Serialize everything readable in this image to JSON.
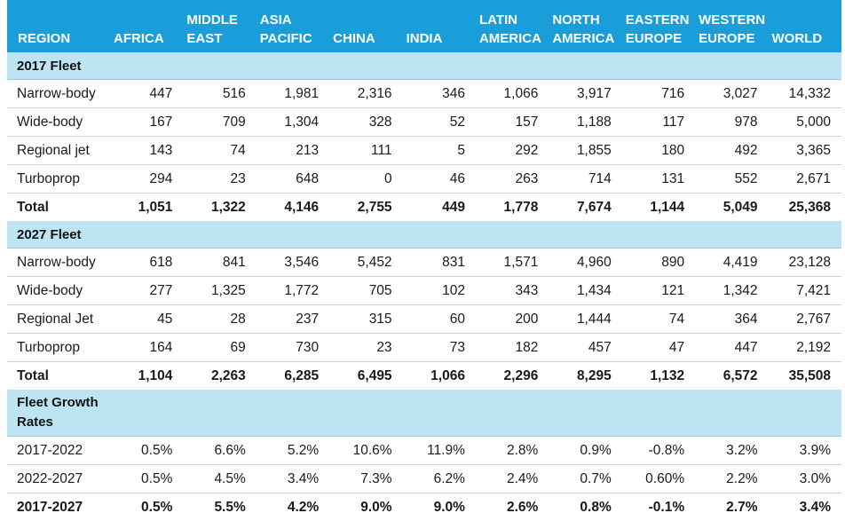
{
  "headers": [
    [
      "REGION"
    ],
    [
      "AFRICA"
    ],
    [
      "MIDDLE",
      "EAST"
    ],
    [
      "ASIA",
      "PACIFIC"
    ],
    [
      "CHINA"
    ],
    [
      "INDIA"
    ],
    [
      "LATIN",
      "AMERICA"
    ],
    [
      "NORTH",
      "AMERICA"
    ],
    [
      "EASTERN",
      "EUROPE"
    ],
    [
      "WESTERN",
      "EUROPE"
    ],
    [
      "WORLD"
    ]
  ],
  "sections": [
    {
      "title": "2017 Fleet",
      "rows": [
        {
          "cells": [
            "Narrow-body",
            "447",
            "516",
            "1,981",
            "2,316",
            "346",
            "1,066",
            "3,917",
            "716",
            "3,027",
            "14,332"
          ]
        },
        {
          "cells": [
            "Wide-body",
            "167",
            "709",
            "1,304",
            "328",
            "52",
            "157",
            "1,188",
            "117",
            "978",
            "5,000"
          ]
        },
        {
          "cells": [
            "Regional jet",
            "143",
            "74",
            "213",
            "111",
            "5",
            "292",
            "1,855",
            "180",
            "492",
            "3,365"
          ]
        },
        {
          "cells": [
            "Turboprop",
            "294",
            "23",
            "648",
            "0",
            "46",
            "263",
            "714",
            "131",
            "552",
            "2,671"
          ]
        },
        {
          "total": true,
          "cells": [
            "Total",
            "1,051",
            "1,322",
            "4,146",
            "2,755",
            "449",
            "1,778",
            "7,674",
            "1,144",
            "5,049",
            "25,368"
          ]
        }
      ]
    },
    {
      "title": "2027 Fleet",
      "rows": [
        {
          "cells": [
            "Narrow-body",
            "618",
            "841",
            "3,546",
            "5,452",
            "831",
            "1,571",
            "4,960",
            "890",
            "4,419",
            "23,128"
          ]
        },
        {
          "cells": [
            "Wide-body",
            "277",
            "1,325",
            "1,772",
            "705",
            "102",
            "343",
            "1,434",
            "121",
            "1,342",
            "7,421"
          ]
        },
        {
          "cells": [
            "Regional Jet",
            "45",
            "28",
            "237",
            "315",
            "60",
            "200",
            "1,444",
            "74",
            "364",
            "2,767"
          ]
        },
        {
          "cells": [
            "Turboprop",
            "164",
            "69",
            "730",
            "23",
            "73",
            "182",
            "457",
            "47",
            "447",
            "2,192"
          ]
        },
        {
          "total": true,
          "cells": [
            "Total",
            "1,104",
            "2,263",
            "6,285",
            "6,495",
            "1,066",
            "2,296",
            "8,295",
            "1,132",
            "6,572",
            "35,508"
          ]
        }
      ]
    },
    {
      "title": "Fleet Growth Rates",
      "title_lines": [
        "Fleet Growth",
        "Rates"
      ],
      "rows": [
        {
          "cells": [
            "2017-2022",
            "0.5%",
            "6.6%",
            "5.2%",
            "10.6%",
            "11.9%",
            "2.8%",
            "0.9%",
            "-0.8%",
            "3.2%",
            "3.9%"
          ]
        },
        {
          "cells": [
            "2022-2027",
            "0.5%",
            "4.5%",
            "3.4%",
            "7.3%",
            "6.2%",
            "2.4%",
            "0.7%",
            "0.60%",
            "2.2%",
            "3.0%"
          ]
        },
        {
          "total": true,
          "cells": [
            "2017-2027",
            "0.5%",
            "5.5%",
            "4.2%",
            "9.0%",
            "9.0%",
            "2.6%",
            "0.8%",
            "-0.1%",
            "2.7%",
            "3.4%"
          ]
        }
      ]
    }
  ],
  "colors": {
    "header_bg": "#1a9ed9",
    "section_bg": "#bde4f2"
  }
}
